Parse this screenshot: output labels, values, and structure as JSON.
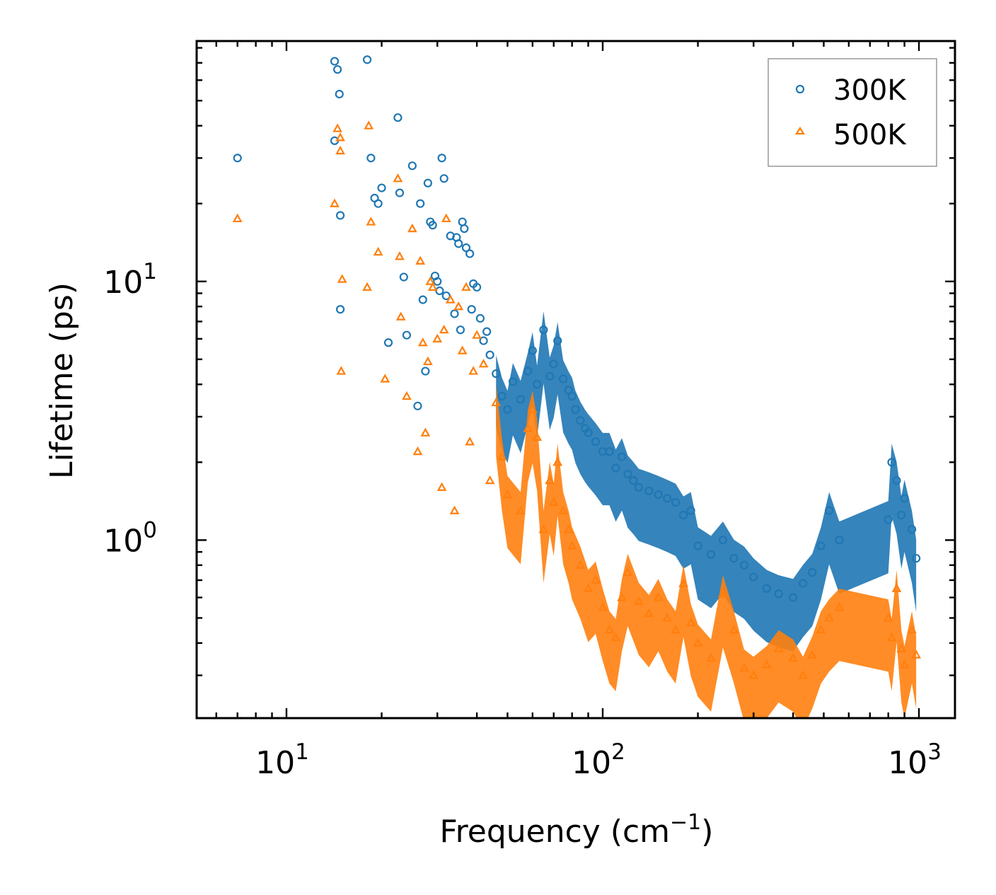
{
  "chart_data": {
    "type": "scatter",
    "xscale": "log",
    "yscale": "log",
    "xlim": [
      5.2,
      1300
    ],
    "ylim": [
      0.205,
      85
    ],
    "xlabel": "Frequency (cm",
    "xlabel_sup": "−1",
    "xlabel_end": ")",
    "ylabel": "Lifetime (ps)",
    "grid": false,
    "legend_position": "top-right",
    "x_tick_labels": [
      {
        "value": 10,
        "base": "10",
        "exp": "1"
      },
      {
        "value": 100,
        "base": "10",
        "exp": "2"
      },
      {
        "value": 1000,
        "base": "10",
        "exp": "3"
      }
    ],
    "y_tick_labels": [
      {
        "value": 1,
        "base": "10",
        "exp": "0"
      },
      {
        "value": 10,
        "base": "10",
        "exp": "1"
      }
    ],
    "series": [
      {
        "name": "300K",
        "marker": "circle",
        "color": "#1f77b4",
        "x": [
          7,
          14.2,
          14.5,
          14.7,
          14.2,
          14.8,
          14.8,
          18,
          18.5,
          19,
          19.5,
          20,
          21,
          22.5,
          22.8,
          23.5,
          24,
          25,
          26,
          26.5,
          27,
          27.5,
          28,
          28.5,
          29,
          29.5,
          30,
          30.5,
          31,
          31.5,
          32,
          33,
          34,
          34.5,
          35,
          35.5,
          36,
          36.5,
          37,
          38,
          38.5,
          39,
          40,
          41,
          42,
          43,
          44,
          46,
          48,
          50,
          52,
          55,
          58,
          60,
          62,
          65,
          68,
          70,
          72,
          75,
          78,
          80,
          82,
          85,
          88,
          90,
          95,
          100,
          105,
          110,
          115,
          120,
          125,
          130,
          140,
          150,
          160,
          170,
          180,
          190,
          200,
          220,
          240,
          260,
          280,
          300,
          330,
          360,
          400,
          430,
          460,
          490,
          520,
          560,
          800,
          820,
          850,
          880,
          900,
          950,
          980
        ],
        "y": [
          30,
          71,
          66,
          53,
          35,
          18,
          7.8,
          72,
          30,
          21,
          20,
          23,
          5.8,
          43,
          22,
          10.4,
          6.2,
          28,
          3.3,
          20,
          8.5,
          4.5,
          24,
          17,
          16.5,
          10.5,
          10,
          9.2,
          30,
          25,
          8.8,
          15,
          7.5,
          14.8,
          14,
          6.5,
          17,
          16,
          13.5,
          12.8,
          7.8,
          9.8,
          9.5,
          7.2,
          5.9,
          6.4,
          5.2,
          4.4,
          3.6,
          3.2,
          4.1,
          3.5,
          4.5,
          5.4,
          4.0,
          6.5,
          4.3,
          4.8,
          5.9,
          4.2,
          3.8,
          3.6,
          3.2,
          2.9,
          2.7,
          2.6,
          2.4,
          2.2,
          2.2,
          1.9,
          2.1,
          1.8,
          1.7,
          1.6,
          1.55,
          1.5,
          1.45,
          1.4,
          1.25,
          1.3,
          0.95,
          0.88,
          1.0,
          0.85,
          0.8,
          0.72,
          0.65,
          0.62,
          0.6,
          0.68,
          0.75,
          0.95,
          1.3,
          1.0,
          1.2,
          2.0,
          1.7,
          1.25,
          1.45,
          1.1,
          0.85
        ]
      },
      {
        "name": "500K",
        "marker": "triangle",
        "color": "#ff7f0e",
        "x": [
          7,
          14.2,
          14.5,
          14.8,
          15,
          14.8,
          14.9,
          18.2,
          18.5,
          18,
          19.5,
          20.5,
          22.5,
          22.8,
          23,
          24,
          25,
          26,
          26.5,
          27,
          27.5,
          28,
          28.5,
          29,
          30,
          31,
          31.5,
          32,
          33,
          34,
          35,
          36,
          37,
          38,
          39,
          40,
          42,
          44,
          46,
          48,
          50,
          55,
          58,
          60,
          62,
          65,
          68,
          70,
          72,
          75,
          78,
          80,
          85,
          90,
          95,
          100,
          105,
          110,
          115,
          120,
          130,
          140,
          150,
          160,
          170,
          180,
          190,
          200,
          220,
          240,
          260,
          280,
          300,
          330,
          360,
          400,
          430,
          460,
          490,
          520,
          560,
          800,
          820,
          850,
          880,
          900,
          950,
          980
        ],
        "y": [
          17.5,
          20,
          39,
          36,
          10.2,
          32,
          4.5,
          40,
          17,
          9.5,
          13,
          4.2,
          25,
          12.5,
          7.3,
          3.6,
          16,
          2.2,
          12,
          5.8,
          2.6,
          4.9,
          10,
          9.5,
          6,
          1.6,
          6.5,
          17.5,
          8.5,
          1.3,
          8,
          5.4,
          9.5,
          2.4,
          4.5,
          6.2,
          4.8,
          1.7,
          3.4,
          2.1,
          1.5,
          1.3,
          2.7,
          3.2,
          2.5,
          1.1,
          1.7,
          1.4,
          2.0,
          1.3,
          1.1,
          0.95,
          0.8,
          0.65,
          0.7,
          0.55,
          0.45,
          0.42,
          0.6,
          0.75,
          0.58,
          0.52,
          0.6,
          0.5,
          0.45,
          0.68,
          0.48,
          0.4,
          0.35,
          0.62,
          0.45,
          0.32,
          0.3,
          0.33,
          0.38,
          0.35,
          0.3,
          0.36,
          0.45,
          0.5,
          0.55,
          0.5,
          0.42,
          0.65,
          0.38,
          0.33,
          0.45,
          0.36
        ]
      }
    ]
  }
}
